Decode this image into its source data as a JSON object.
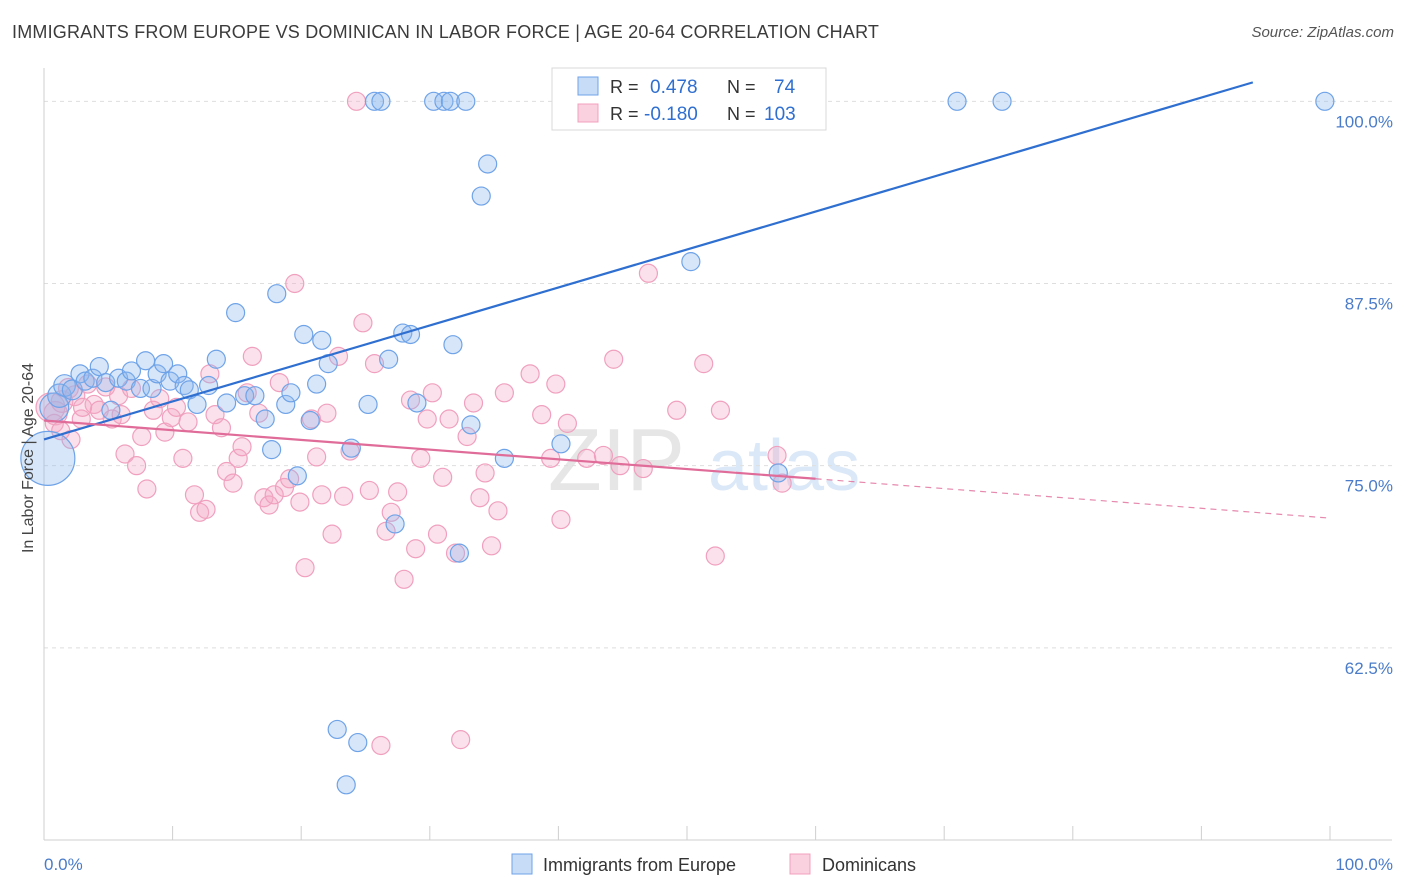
{
  "title": "IMMIGRANTS FROM EUROPE VS DOMINICAN IN LABOR FORCE | AGE 20-64 CORRELATION CHART",
  "source": "Source: ZipAtlas.com",
  "watermark": {
    "zip": "ZIP",
    "atlas": "atlas"
  },
  "colors": {
    "blue": "#6fa3e8",
    "blue_line": "#2f6fd0",
    "pink": "#f0a0be",
    "pink_line": "#e06c99",
    "axis_label": "#4a7cc9",
    "grid": "#dcdcdc"
  },
  "legend_top": [
    {
      "r_label": "R =",
      "r_value": "0.478",
      "n_label": "N =",
      "n_value": "74"
    },
    {
      "r_label": "R =",
      "r_value": "-0.180",
      "n_label": "N =",
      "n_value": "103"
    }
  ],
  "legend_bottom": [
    "Immigrants from Europe",
    "Dominicans"
  ],
  "chart_data": {
    "type": "scatter",
    "title": "IMMIGRANTS FROM EUROPE VS DOMINICAN IN LABOR FORCE | AGE 20-64 CORRELATION CHART",
    "xlabel": "",
    "ylabel": "In Labor Force | Age 20-64",
    "xlim": [
      0,
      100
    ],
    "ylim": [
      50.0,
      101.6
    ],
    "x_tick_labels": [
      "0.0%",
      "100.0%"
    ],
    "y_tick_labels": [
      "100.0%",
      "87.5%",
      "75.0%",
      "62.5%"
    ],
    "y_ticks": [
      100.0,
      87.5,
      75.0,
      62.5
    ],
    "grid": true,
    "legend_position": "top-center",
    "series": [
      {
        "name": "Immigrants from Europe",
        "r": 0.478,
        "n": 74,
        "trend": {
          "x": [
            0,
            94
          ],
          "y": [
            76.8,
            101.3
          ],
          "dashed_to": null
        },
        "points": [
          [
            0.3,
            75.5,
            3
          ],
          [
            0.8,
            79.0,
            1.6
          ],
          [
            1.2,
            79.8,
            1.3
          ],
          [
            1.6,
            80.5,
            1.2
          ],
          [
            2.2,
            80.2,
            1.1
          ],
          [
            2.8,
            81.3,
            1
          ],
          [
            3.2,
            80.8,
            1
          ],
          [
            3.8,
            81.0,
            1
          ],
          [
            4.3,
            81.8,
            1
          ],
          [
            4.8,
            80.7,
            1
          ],
          [
            5.2,
            78.8,
            1
          ],
          [
            5.8,
            81.0,
            1
          ],
          [
            6.4,
            80.8,
            1
          ],
          [
            6.8,
            81.5,
            1
          ],
          [
            7.5,
            80.3,
            1
          ],
          [
            7.9,
            82.2,
            1
          ],
          [
            8.4,
            80.3,
            1
          ],
          [
            8.8,
            81.3,
            1
          ],
          [
            9.3,
            82.0,
            1
          ],
          [
            9.8,
            80.8,
            1
          ],
          [
            10.4,
            81.3,
            1
          ],
          [
            10.9,
            80.5,
            1
          ],
          [
            11.3,
            80.2,
            1
          ],
          [
            11.9,
            79.2,
            1
          ],
          [
            12.8,
            80.5,
            1
          ],
          [
            13.4,
            82.3,
            1
          ],
          [
            14.2,
            79.3,
            1
          ],
          [
            14.9,
            85.5,
            1
          ],
          [
            15.6,
            79.8,
            1
          ],
          [
            16.4,
            79.8,
            1
          ],
          [
            17.2,
            78.2,
            1
          ],
          [
            17.7,
            76.1,
            1
          ],
          [
            18.1,
            86.8,
            1
          ],
          [
            18.8,
            79.2,
            1
          ],
          [
            19.2,
            80.0,
            1
          ],
          [
            19.7,
            74.3,
            1
          ],
          [
            20.2,
            84.0,
            1
          ],
          [
            20.7,
            78.1,
            1
          ],
          [
            21.2,
            80.6,
            1
          ],
          [
            21.6,
            83.6,
            1
          ],
          [
            22.1,
            82.0,
            1
          ],
          [
            22.8,
            56.9,
            1
          ],
          [
            23.5,
            53.1,
            1
          ],
          [
            23.9,
            76.2,
            1
          ],
          [
            24.4,
            56.0,
            1
          ],
          [
            25.2,
            79.2,
            1
          ],
          [
            25.7,
            100.0,
            1
          ],
          [
            26.2,
            100.0,
            1
          ],
          [
            26.8,
            82.3,
            1
          ],
          [
            27.3,
            71.0,
            1
          ],
          [
            27.9,
            84.1,
            1
          ],
          [
            28.5,
            84.0,
            1
          ],
          [
            29.0,
            79.3,
            1
          ],
          [
            30.3,
            100.0,
            1
          ],
          [
            31.1,
            100.0,
            1
          ],
          [
            31.6,
            100.0,
            1
          ],
          [
            32.3,
            69.0,
            1
          ],
          [
            32.8,
            100.0,
            1
          ],
          [
            31.8,
            83.3,
            1
          ],
          [
            33.2,
            77.8,
            1
          ],
          [
            34.0,
            93.5,
            1
          ],
          [
            34.5,
            95.7,
            1
          ],
          [
            35.8,
            75.5,
            1
          ],
          [
            40.2,
            76.5,
            1
          ],
          [
            50.3,
            89.0,
            1
          ],
          [
            57.1,
            74.5,
            1
          ],
          [
            54.3,
            100.0,
            1
          ],
          [
            55.6,
            100.0,
            1
          ],
          [
            56.1,
            100.0,
            1
          ],
          [
            56.6,
            100.0,
            1
          ],
          [
            59.2,
            100.0,
            1
          ],
          [
            71.0,
            100.0,
            1
          ],
          [
            74.5,
            100.0,
            1
          ],
          [
            99.6,
            100.0,
            1
          ]
        ]
      },
      {
        "name": "Dominicans",
        "r": -0.18,
        "n": 103,
        "trend": {
          "x": [
            0,
            60
          ],
          "y": [
            78.1,
            74.1
          ],
          "dashed_to": [
            100,
            71.4
          ]
        },
        "points": [
          [
            0.5,
            79.0,
            1.6
          ],
          [
            0.9,
            78.6,
            1.3
          ],
          [
            1.4,
            79.4,
            1.2
          ],
          [
            1.9,
            80.3,
            1.1
          ],
          [
            2.4,
            79.8,
            1.1
          ],
          [
            2.9,
            78.2,
            1
          ],
          [
            3.4,
            80.6,
            1
          ],
          [
            3.9,
            79.2,
            1
          ],
          [
            4.3,
            78.8,
            1
          ],
          [
            4.8,
            80.4,
            1
          ],
          [
            5.3,
            78.2,
            1
          ],
          [
            5.8,
            79.8,
            1
          ],
          [
            6.3,
            75.8,
            1
          ],
          [
            6.8,
            80.3,
            1
          ],
          [
            7.2,
            75.0,
            1
          ],
          [
            7.6,
            77.0,
            1
          ],
          [
            8.0,
            73.4,
            1
          ],
          [
            8.5,
            78.8,
            1
          ],
          [
            9.0,
            79.6,
            1
          ],
          [
            9.4,
            77.3,
            1
          ],
          [
            9.9,
            78.3,
            1
          ],
          [
            10.3,
            79.0,
            1
          ],
          [
            10.8,
            75.5,
            1
          ],
          [
            11.2,
            78.0,
            1
          ],
          [
            11.7,
            73.0,
            1
          ],
          [
            12.1,
            71.8,
            1
          ],
          [
            12.6,
            72.0,
            1
          ],
          [
            12.9,
            81.3,
            1
          ],
          [
            13.3,
            78.5,
            1
          ],
          [
            13.8,
            77.6,
            1
          ],
          [
            14.2,
            74.6,
            1
          ],
          [
            14.7,
            73.8,
            1
          ],
          [
            15.1,
            75.5,
            1
          ],
          [
            15.4,
            76.3,
            1
          ],
          [
            15.8,
            80.0,
            1
          ],
          [
            16.2,
            82.5,
            1
          ],
          [
            16.7,
            78.6,
            1
          ],
          [
            17.1,
            72.8,
            1
          ],
          [
            17.5,
            72.3,
            1
          ],
          [
            17.9,
            73.0,
            1
          ],
          [
            18.3,
            80.7,
            1
          ],
          [
            18.7,
            73.5,
            1
          ],
          [
            19.1,
            74.1,
            1
          ],
          [
            19.5,
            87.5,
            1
          ],
          [
            19.9,
            72.5,
            1
          ],
          [
            20.3,
            68.0,
            1
          ],
          [
            20.8,
            78.2,
            1
          ],
          [
            21.2,
            75.6,
            1
          ],
          [
            21.6,
            73.0,
            1
          ],
          [
            22.0,
            78.6,
            1
          ],
          [
            22.4,
            70.3,
            1
          ],
          [
            22.9,
            82.5,
            1
          ],
          [
            23.3,
            72.9,
            1
          ],
          [
            23.8,
            76.0,
            1
          ],
          [
            24.3,
            100.0,
            1
          ],
          [
            24.8,
            84.8,
            1
          ],
          [
            25.3,
            73.3,
            1
          ],
          [
            25.7,
            82.0,
            1
          ],
          [
            26.2,
            55.8,
            1
          ],
          [
            26.6,
            70.5,
            1
          ],
          [
            27.0,
            71.8,
            1
          ],
          [
            27.5,
            73.2,
            1
          ],
          [
            28.0,
            67.2,
            1
          ],
          [
            28.5,
            79.5,
            1
          ],
          [
            28.9,
            69.3,
            1
          ],
          [
            29.3,
            75.5,
            1
          ],
          [
            29.8,
            78.2,
            1
          ],
          [
            30.2,
            80.0,
            1
          ],
          [
            30.6,
            70.3,
            1
          ],
          [
            31.0,
            74.2,
            1
          ],
          [
            31.5,
            78.2,
            1
          ],
          [
            32.0,
            69.0,
            1
          ],
          [
            32.4,
            56.2,
            1
          ],
          [
            32.9,
            77.0,
            1
          ],
          [
            33.4,
            79.3,
            1
          ],
          [
            33.9,
            72.8,
            1
          ],
          [
            34.3,
            74.5,
            1
          ],
          [
            34.8,
            69.5,
            1
          ],
          [
            35.3,
            71.9,
            1
          ],
          [
            35.8,
            80.0,
            1
          ],
          [
            37.8,
            81.3,
            1
          ],
          [
            38.7,
            78.5,
            1
          ],
          [
            39.4,
            75.5,
            1
          ],
          [
            39.8,
            80.6,
            1
          ],
          [
            40.2,
            71.3,
            1
          ],
          [
            40.7,
            77.9,
            1
          ],
          [
            42.2,
            75.5,
            1
          ],
          [
            43.5,
            75.7,
            1
          ],
          [
            44.3,
            82.3,
            1
          ],
          [
            44.8,
            75.0,
            1
          ],
          [
            46.6,
            74.8,
            1
          ],
          [
            47.0,
            88.2,
            1
          ],
          [
            49.2,
            78.8,
            1
          ],
          [
            51.3,
            82.0,
            1
          ],
          [
            52.2,
            68.8,
            1
          ],
          [
            52.6,
            78.8,
            1
          ],
          [
            57.0,
            75.7,
            1
          ],
          [
            57.4,
            73.8,
            1
          ],
          [
            0.8,
            77.9,
            1
          ],
          [
            1.3,
            77.4,
            1
          ],
          [
            2.1,
            76.8,
            1
          ],
          [
            3.0,
            79.0,
            1
          ],
          [
            6.0,
            78.5,
            1
          ]
        ]
      }
    ]
  }
}
